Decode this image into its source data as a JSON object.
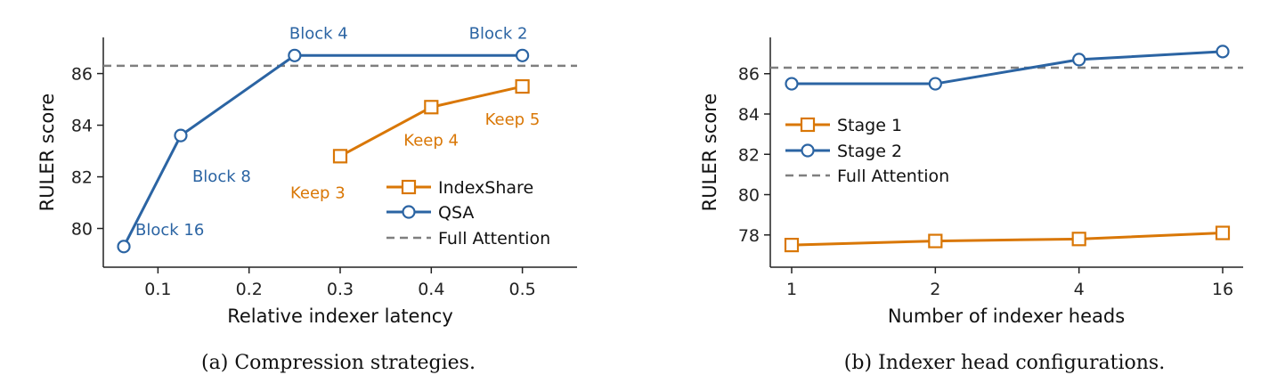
{
  "colors": {
    "indexshare": "#d97706",
    "qsa": "#2b64a3",
    "full_attention": "#7f7f7f",
    "axis": "#222222"
  },
  "chart_data": [
    {
      "type": "line",
      "caption": "(a) Compression strategies.",
      "xlabel": "Relative indexer latency",
      "ylabel": "RULER score",
      "xlim": [
        0.04,
        0.56
      ],
      "ylim": [
        78.5,
        87.4
      ],
      "xticks": [
        0.1,
        0.2,
        0.3,
        0.4,
        0.5
      ],
      "xtick_labels": [
        "0.1",
        "0.2",
        "0.3",
        "0.4",
        "0.5"
      ],
      "yticks": [
        80,
        82,
        84,
        86
      ],
      "ytick_labels": [
        "80",
        "82",
        "84",
        "86"
      ],
      "grid": false,
      "legend_position": "lower-right",
      "reference_line": {
        "name": "Full Attention",
        "y": 86.3
      },
      "series": [
        {
          "name": "IndexShare",
          "marker": "square",
          "color": "#d97706",
          "x": [
            0.3,
            0.4,
            0.5
          ],
          "y": [
            82.8,
            84.7,
            85.5
          ],
          "point_labels": [
            "Keep 3",
            "Keep 4",
            "Keep 5"
          ]
        },
        {
          "name": "QSA",
          "marker": "circle",
          "color": "#2b64a3",
          "x": [
            0.0625,
            0.125,
            0.25,
            0.5
          ],
          "y": [
            79.3,
            83.6,
            86.7,
            86.7
          ],
          "point_labels": [
            "Block 16",
            "Block 8",
            "Block 4",
            "Block 2"
          ]
        }
      ]
    },
    {
      "type": "line",
      "caption": "(b) Indexer head configurations.",
      "xlabel": "Number of indexer heads",
      "ylabel": "RULER score",
      "categories": [
        "1",
        "2",
        "4",
        "16"
      ],
      "ylim": [
        76.4,
        87.8
      ],
      "yticks": [
        78,
        80,
        82,
        84,
        86
      ],
      "ytick_labels": [
        "78",
        "80",
        "82",
        "84",
        "86"
      ],
      "grid": false,
      "legend_position": "upper-left",
      "reference_line": {
        "name": "Full Attention",
        "y": 86.3
      },
      "series": [
        {
          "name": "Stage 1",
          "marker": "square",
          "color": "#d97706",
          "values": [
            77.5,
            77.7,
            77.8,
            78.1
          ]
        },
        {
          "name": "Stage 2",
          "marker": "circle",
          "color": "#2b64a3",
          "values": [
            85.5,
            85.5,
            86.7,
            87.1
          ]
        }
      ]
    }
  ]
}
